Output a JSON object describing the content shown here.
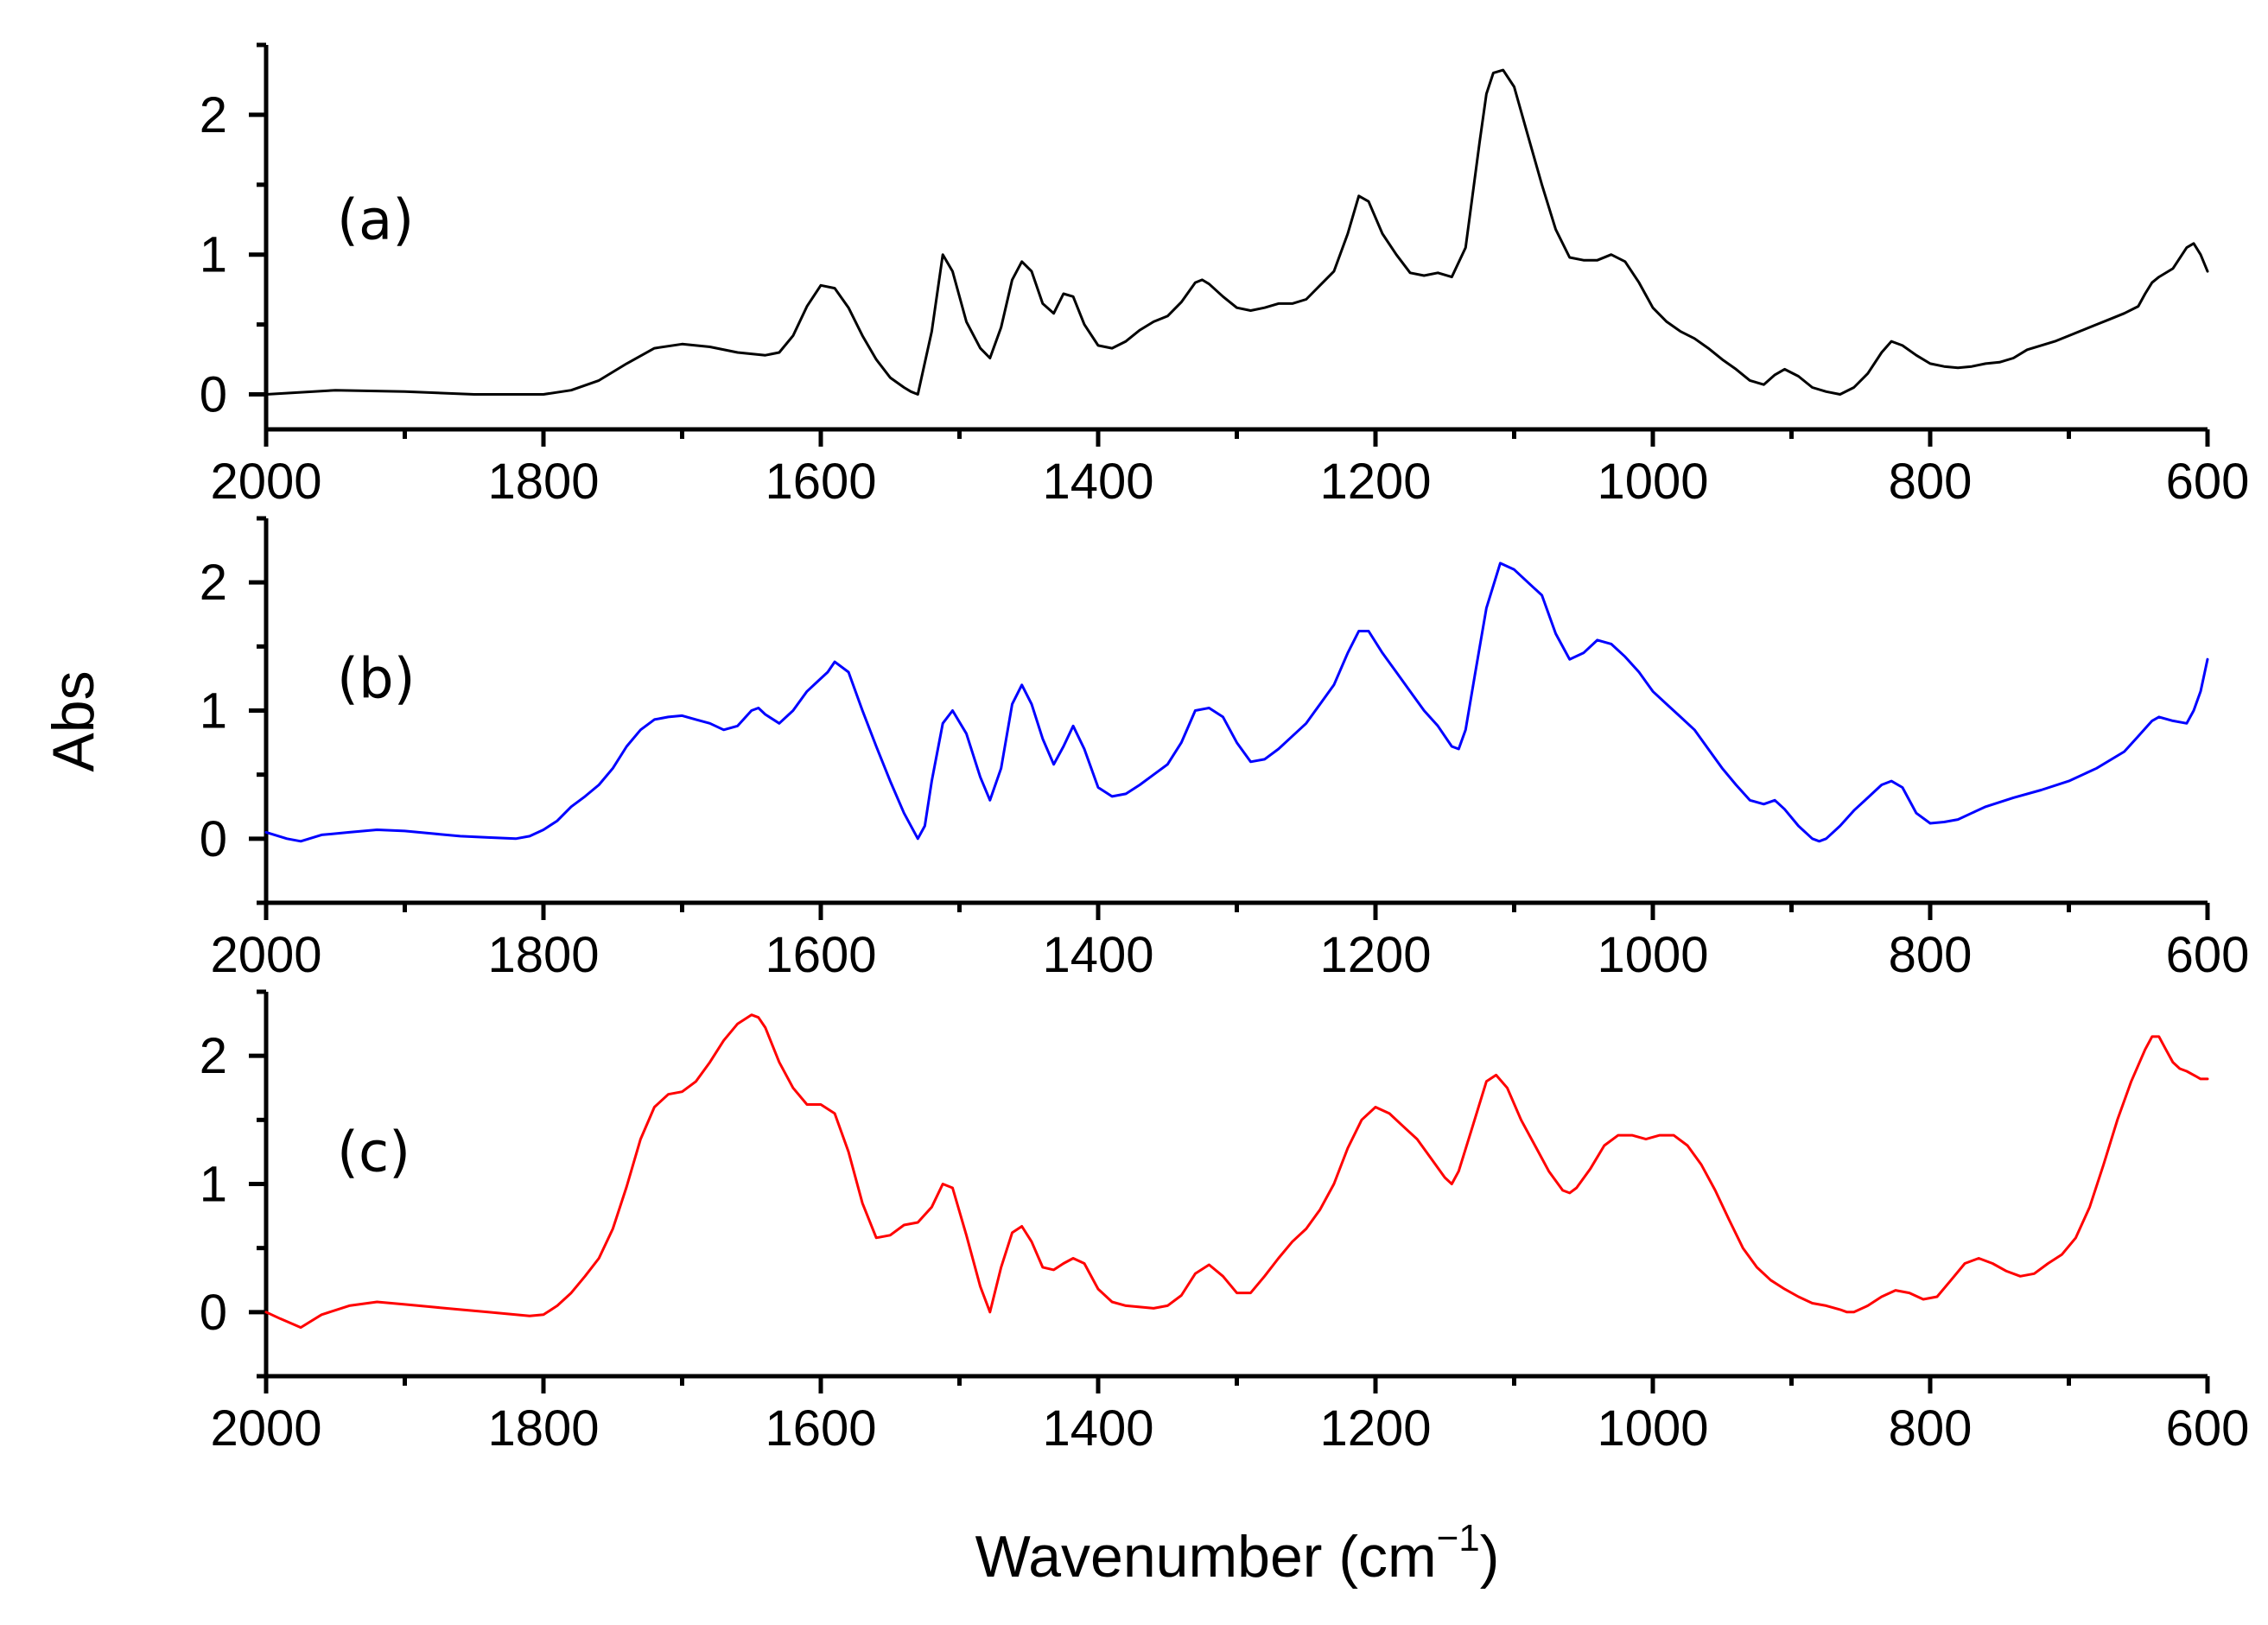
{
  "figure": {
    "ylabel": "Abs",
    "xlabel_main": "Wavenumber (cm",
    "xlabel_sup": "−1",
    "xlabel_close": ")"
  },
  "chart_data": [
    {
      "type": "line",
      "panel_label": "(a)",
      "series_name": "(a)",
      "color": "#000000",
      "xlim": [
        2000,
        600
      ],
      "ylim": [
        -0.25,
        2.5
      ],
      "yticks": [
        0,
        1,
        2
      ],
      "ytick_labels": [
        "0",
        "1",
        "2"
      ],
      "xticks": [
        2000,
        1800,
        1600,
        1400,
        1200,
        1000,
        800,
        600
      ],
      "xtick_labels": [
        "2000",
        "1800",
        "1600",
        "1400",
        "1200",
        "1000",
        "800",
        "600"
      ],
      "x": [
        2000,
        1950,
        1900,
        1850,
        1800,
        1780,
        1760,
        1740,
        1720,
        1700,
        1680,
        1660,
        1640,
        1630,
        1620,
        1610,
        1600,
        1590,
        1580,
        1570,
        1560,
        1550,
        1540,
        1535,
        1530,
        1520,
        1512,
        1505,
        1495,
        1485,
        1478,
        1470,
        1462,
        1455,
        1448,
        1440,
        1432,
        1425,
        1418,
        1410,
        1400,
        1390,
        1380,
        1370,
        1360,
        1350,
        1340,
        1330,
        1325,
        1320,
        1310,
        1300,
        1290,
        1280,
        1270,
        1260,
        1250,
        1240,
        1230,
        1220,
        1212,
        1205,
        1195,
        1185,
        1175,
        1165,
        1155,
        1145,
        1135,
        1125,
        1120,
        1115,
        1108,
        1100,
        1090,
        1080,
        1070,
        1060,
        1050,
        1040,
        1030,
        1020,
        1010,
        1000,
        990,
        980,
        970,
        960,
        950,
        940,
        930,
        920,
        912,
        905,
        895,
        885,
        875,
        865,
        855,
        845,
        835,
        828,
        820,
        810,
        800,
        790,
        780,
        770,
        760,
        750,
        740,
        730,
        720,
        710,
        700,
        690,
        680,
        670,
        660,
        650,
        645,
        640,
        635,
        625,
        615,
        610,
        605,
        600
      ],
      "y": [
        0.0,
        0.03,
        0.02,
        0.0,
        0.0,
        0.03,
        0.1,
        0.22,
        0.33,
        0.36,
        0.34,
        0.3,
        0.28,
        0.3,
        0.42,
        0.63,
        0.78,
        0.76,
        0.62,
        0.42,
        0.25,
        0.12,
        0.05,
        0.02,
        0.0,
        0.45,
        1.0,
        0.88,
        0.52,
        0.33,
        0.26,
        0.48,
        0.82,
        0.95,
        0.88,
        0.65,
        0.58,
        0.72,
        0.7,
        0.5,
        0.35,
        0.33,
        0.38,
        0.46,
        0.52,
        0.56,
        0.66,
        0.8,
        0.82,
        0.79,
        0.7,
        0.62,
        0.6,
        0.62,
        0.65,
        0.65,
        0.68,
        0.78,
        0.88,
        1.15,
        1.42,
        1.38,
        1.15,
        1.0,
        0.87,
        0.85,
        0.87,
        0.84,
        1.05,
        1.8,
        2.15,
        2.3,
        2.32,
        2.2,
        1.85,
        1.5,
        1.18,
        0.98,
        0.96,
        0.96,
        1.0,
        0.95,
        0.8,
        0.62,
        0.52,
        0.45,
        0.4,
        0.33,
        0.25,
        0.18,
        0.1,
        0.07,
        0.14,
        0.18,
        0.13,
        0.05,
        0.02,
        0.0,
        0.05,
        0.15,
        0.3,
        0.38,
        0.35,
        0.28,
        0.22,
        0.2,
        0.19,
        0.2,
        0.22,
        0.23,
        0.26,
        0.32,
        0.35,
        0.38,
        0.42,
        0.46,
        0.5,
        0.54,
        0.58,
        0.63,
        0.72,
        0.8,
        0.84,
        0.9,
        1.05,
        1.08,
        1.0,
        0.88
      ]
    },
    {
      "type": "line",
      "panel_label": "(b)",
      "series_name": "(b)",
      "color": "#0000ff",
      "xlim": [
        2000,
        600
      ],
      "ylim": [
        -0.5,
        2.5
      ],
      "yticks": [
        0,
        1,
        2
      ],
      "ytick_labels": [
        "0",
        "1",
        "2"
      ],
      "xticks": [
        2000,
        1800,
        1600,
        1400,
        1200,
        1000,
        800,
        600
      ],
      "xtick_labels": [
        "2000",
        "1800",
        "1600",
        "1400",
        "1200",
        "1000",
        "800",
        "600"
      ],
      "x": [
        2000,
        1985,
        1975,
        1960,
        1940,
        1920,
        1900,
        1880,
        1860,
        1840,
        1820,
        1810,
        1800,
        1790,
        1780,
        1770,
        1760,
        1750,
        1740,
        1730,
        1720,
        1710,
        1700,
        1690,
        1680,
        1670,
        1660,
        1650,
        1645,
        1640,
        1630,
        1620,
        1610,
        1600,
        1595,
        1590,
        1580,
        1570,
        1560,
        1550,
        1540,
        1530,
        1525,
        1520,
        1512,
        1505,
        1495,
        1485,
        1478,
        1470,
        1462,
        1455,
        1448,
        1440,
        1432,
        1425,
        1418,
        1410,
        1400,
        1390,
        1380,
        1370,
        1360,
        1350,
        1340,
        1330,
        1320,
        1310,
        1300,
        1290,
        1280,
        1270,
        1260,
        1250,
        1240,
        1230,
        1220,
        1212,
        1205,
        1195,
        1185,
        1175,
        1165,
        1155,
        1145,
        1140,
        1135,
        1128,
        1120,
        1110,
        1100,
        1090,
        1080,
        1070,
        1060,
        1050,
        1040,
        1030,
        1020,
        1010,
        1000,
        990,
        980,
        970,
        960,
        950,
        940,
        930,
        920,
        912,
        905,
        895,
        885,
        880,
        875,
        865,
        855,
        845,
        835,
        828,
        820,
        810,
        800,
        790,
        780,
        770,
        760,
        740,
        720,
        700,
        680,
        660,
        650,
        640,
        635,
        625,
        615,
        610,
        605,
        600
      ],
      "y": [
        0.05,
        0.0,
        -0.02,
        0.03,
        0.05,
        0.07,
        0.06,
        0.04,
        0.02,
        0.01,
        0.0,
        0.02,
        0.07,
        0.14,
        0.25,
        0.33,
        0.42,
        0.55,
        0.72,
        0.85,
        0.93,
        0.95,
        0.96,
        0.93,
        0.9,
        0.85,
        0.88,
        1.0,
        1.02,
        0.97,
        0.9,
        1.0,
        1.15,
        1.25,
        1.3,
        1.38,
        1.3,
        1.0,
        0.72,
        0.45,
        0.2,
        0.0,
        0.1,
        0.45,
        0.9,
        1.0,
        0.82,
        0.48,
        0.3,
        0.55,
        1.05,
        1.2,
        1.05,
        0.78,
        0.58,
        0.72,
        0.88,
        0.7,
        0.4,
        0.33,
        0.35,
        0.42,
        0.5,
        0.58,
        0.75,
        1.0,
        1.02,
        0.95,
        0.75,
        0.6,
        0.62,
        0.7,
        0.8,
        0.9,
        1.05,
        1.2,
        1.45,
        1.62,
        1.62,
        1.45,
        1.3,
        1.15,
        1.0,
        0.88,
        0.72,
        0.7,
        0.85,
        1.3,
        1.8,
        2.15,
        2.1,
        2.0,
        1.9,
        1.6,
        1.4,
        1.45,
        1.55,
        1.52,
        1.42,
        1.3,
        1.15,
        1.05,
        0.95,
        0.85,
        0.7,
        0.55,
        0.42,
        0.3,
        0.27,
        0.3,
        0.23,
        0.1,
        0.0,
        -0.02,
        0.0,
        0.1,
        0.22,
        0.32,
        0.42,
        0.45,
        0.4,
        0.2,
        0.12,
        0.13,
        0.15,
        0.2,
        0.25,
        0.32,
        0.38,
        0.45,
        0.55,
        0.68,
        0.8,
        0.92,
        0.95,
        0.92,
        0.9,
        1.0,
        1.15,
        1.4
      ]
    },
    {
      "type": "line",
      "panel_label": "(c)",
      "series_name": "(c)",
      "color": "#ff0000",
      "xlim": [
        2000,
        600
      ],
      "ylim": [
        -0.5,
        2.5
      ],
      "yticks": [
        0,
        1,
        2
      ],
      "ytick_labels": [
        "0",
        "1",
        "2"
      ],
      "xticks": [
        2000,
        1800,
        1600,
        1400,
        1200,
        1000,
        800,
        600
      ],
      "xtick_labels": [
        "2000",
        "1800",
        "1600",
        "1400",
        "1200",
        "1000",
        "800",
        "600"
      ],
      "x": [
        2000,
        1990,
        1975,
        1960,
        1940,
        1920,
        1900,
        1880,
        1860,
        1840,
        1820,
        1810,
        1800,
        1790,
        1780,
        1770,
        1760,
        1750,
        1740,
        1730,
        1720,
        1710,
        1700,
        1690,
        1680,
        1670,
        1660,
        1650,
        1645,
        1640,
        1630,
        1620,
        1610,
        1600,
        1590,
        1580,
        1570,
        1560,
        1550,
        1540,
        1530,
        1520,
        1512,
        1505,
        1495,
        1485,
        1478,
        1470,
        1462,
        1455,
        1448,
        1440,
        1432,
        1425,
        1418,
        1410,
        1400,
        1390,
        1380,
        1370,
        1360,
        1350,
        1340,
        1330,
        1320,
        1310,
        1300,
        1290,
        1280,
        1270,
        1260,
        1250,
        1240,
        1230,
        1220,
        1210,
        1200,
        1190,
        1180,
        1170,
        1160,
        1150,
        1145,
        1140,
        1130,
        1120,
        1113,
        1105,
        1095,
        1085,
        1075,
        1065,
        1060,
        1055,
        1045,
        1035,
        1025,
        1015,
        1005,
        995,
        985,
        975,
        965,
        955,
        945,
        935,
        925,
        915,
        905,
        895,
        885,
        875,
        865,
        860,
        855,
        845,
        835,
        825,
        815,
        805,
        795,
        785,
        775,
        765,
        755,
        745,
        735,
        725,
        715,
        705,
        695,
        685,
        675,
        665,
        655,
        645,
        640,
        635,
        630,
        625,
        620,
        615,
        610,
        605,
        600
      ],
      "y": [
        0.0,
        -0.05,
        -0.12,
        -0.02,
        0.05,
        0.08,
        0.06,
        0.04,
        0.02,
        0.0,
        -0.02,
        -0.03,
        -0.02,
        0.05,
        0.15,
        0.28,
        0.42,
        0.65,
        0.98,
        1.35,
        1.6,
        1.7,
        1.72,
        1.8,
        1.95,
        2.12,
        2.25,
        2.32,
        2.3,
        2.22,
        1.95,
        1.75,
        1.62,
        1.62,
        1.55,
        1.25,
        0.85,
        0.58,
        0.6,
        0.68,
        0.7,
        0.82,
        1.0,
        0.97,
        0.6,
        0.2,
        0.0,
        0.35,
        0.62,
        0.67,
        0.55,
        0.35,
        0.33,
        0.38,
        0.42,
        0.38,
        0.18,
        0.08,
        0.05,
        0.04,
        0.03,
        0.05,
        0.13,
        0.3,
        0.37,
        0.28,
        0.15,
        0.15,
        0.28,
        0.42,
        0.55,
        0.65,
        0.8,
        1.0,
        1.28,
        1.5,
        1.6,
        1.55,
        1.45,
        1.35,
        1.2,
        1.05,
        1.0,
        1.1,
        1.45,
        1.8,
        1.85,
        1.75,
        1.5,
        1.3,
        1.1,
        0.95,
        0.93,
        0.97,
        1.12,
        1.3,
        1.38,
        1.38,
        1.35,
        1.38,
        1.38,
        1.3,
        1.15,
        0.95,
        0.72,
        0.5,
        0.35,
        0.25,
        0.18,
        0.12,
        0.07,
        0.05,
        0.02,
        0.0,
        0.0,
        0.05,
        0.12,
        0.17,
        0.15,
        0.1,
        0.12,
        0.25,
        0.38,
        0.42,
        0.38,
        0.32,
        0.28,
        0.3,
        0.38,
        0.45,
        0.58,
        0.82,
        1.15,
        1.5,
        1.8,
        2.05,
        2.15,
        2.15,
        2.05,
        1.95,
        1.9,
        1.88,
        1.85,
        1.82,
        1.82
      ]
    }
  ]
}
